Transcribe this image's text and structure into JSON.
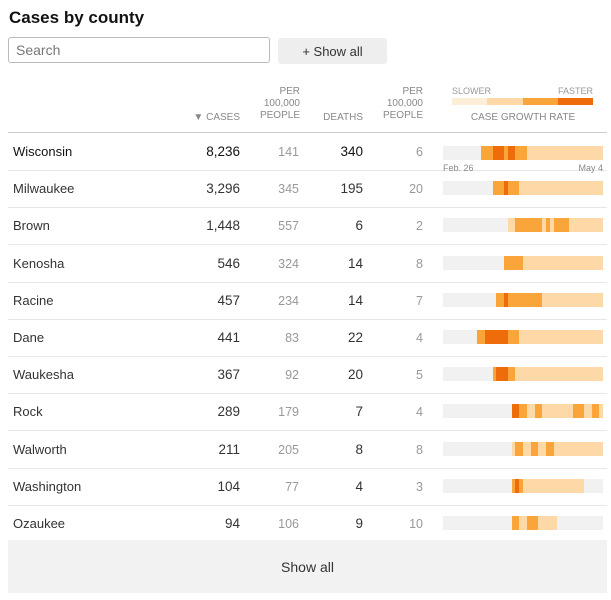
{
  "title": "Cases by county",
  "search": {
    "placeholder": "Search"
  },
  "show_all_top": "+ Show all",
  "show_all_bottom": "Show all",
  "headers": {
    "cases": "▼ CASES",
    "per_1": "PER\n100,000\nPEOPLE",
    "deaths": "DEATHS",
    "per_2": "PER\n100,000\nPEOPLE",
    "growth": "CASE GROWTH RATE"
  },
  "legend": {
    "slower": "SLOWER",
    "faster": "FASTER",
    "colors": [
      "#fdeed8",
      "#fcd9a6",
      "#f9a53a",
      "#ef6c0a"
    ]
  },
  "axis": {
    "start": "Feb. 26",
    "end": "May 4"
  },
  "colors": {
    "none": "#f1f1f1",
    "low": "#fcd9a6",
    "mid": "#f9a53a",
    "high": "#ef6c0a"
  },
  "rows": [
    {
      "name": "Wisconsin",
      "cases": "8,236",
      "per1": "141",
      "deaths": "340",
      "per2": "6",
      "growth": "0000000000000000000000000000000000000000000000000000000000000000000000000000000000000000000000000000000000000000000000000000000000000000000000000000000000000000"
    },
    {
      "name": "Milwaukee",
      "cases": "3,296",
      "per1": "345",
      "deaths": "195",
      "per2": "20"
    },
    {
      "name": "Brown",
      "cases": "1,448",
      "per1": "557",
      "deaths": "6",
      "per2": "2"
    },
    {
      "name": "Kenosha",
      "cases": "546",
      "per1": "324",
      "deaths": "14",
      "per2": "8"
    },
    {
      "name": "Racine",
      "cases": "457",
      "per1": "234",
      "deaths": "14",
      "per2": "7"
    },
    {
      "name": "Dane",
      "cases": "441",
      "per1": "83",
      "deaths": "22",
      "per2": "4"
    },
    {
      "name": "Waukesha",
      "cases": "367",
      "per1": "92",
      "deaths": "20",
      "per2": "5"
    },
    {
      "name": "Rock",
      "cases": "289",
      "per1": "179",
      "deaths": "7",
      "per2": "4"
    },
    {
      "name": "Walworth",
      "cases": "211",
      "per1": "205",
      "deaths": "8",
      "per2": "8"
    },
    {
      "name": "Washington",
      "cases": "104",
      "per1": "77",
      "deaths": "4",
      "per2": "3"
    },
    {
      "name": "Ozaukee",
      "cases": "94",
      "per1": "106",
      "deaths": "9",
      "per2": "10"
    }
  ],
  "growth_bars": [
    "000000000022233323322211111111111111111111",
    "000000000000022232221111111111111111111111",
    "000000000000000001122222221212222111111111",
    "000000000000000022222111111111111111111111",
    "000000000000002232222222221111111111111111",
    "000000000223333332221111111111111111111111",
    "000000000000023332211111111111111111111111",
    "000000000000000000332211221111111122211221",
    "000000000000000000122112211221111111111111",
    "000000000000000000232111111111111111100000",
    "000000000000000000221122211111000000000000"
  ]
}
